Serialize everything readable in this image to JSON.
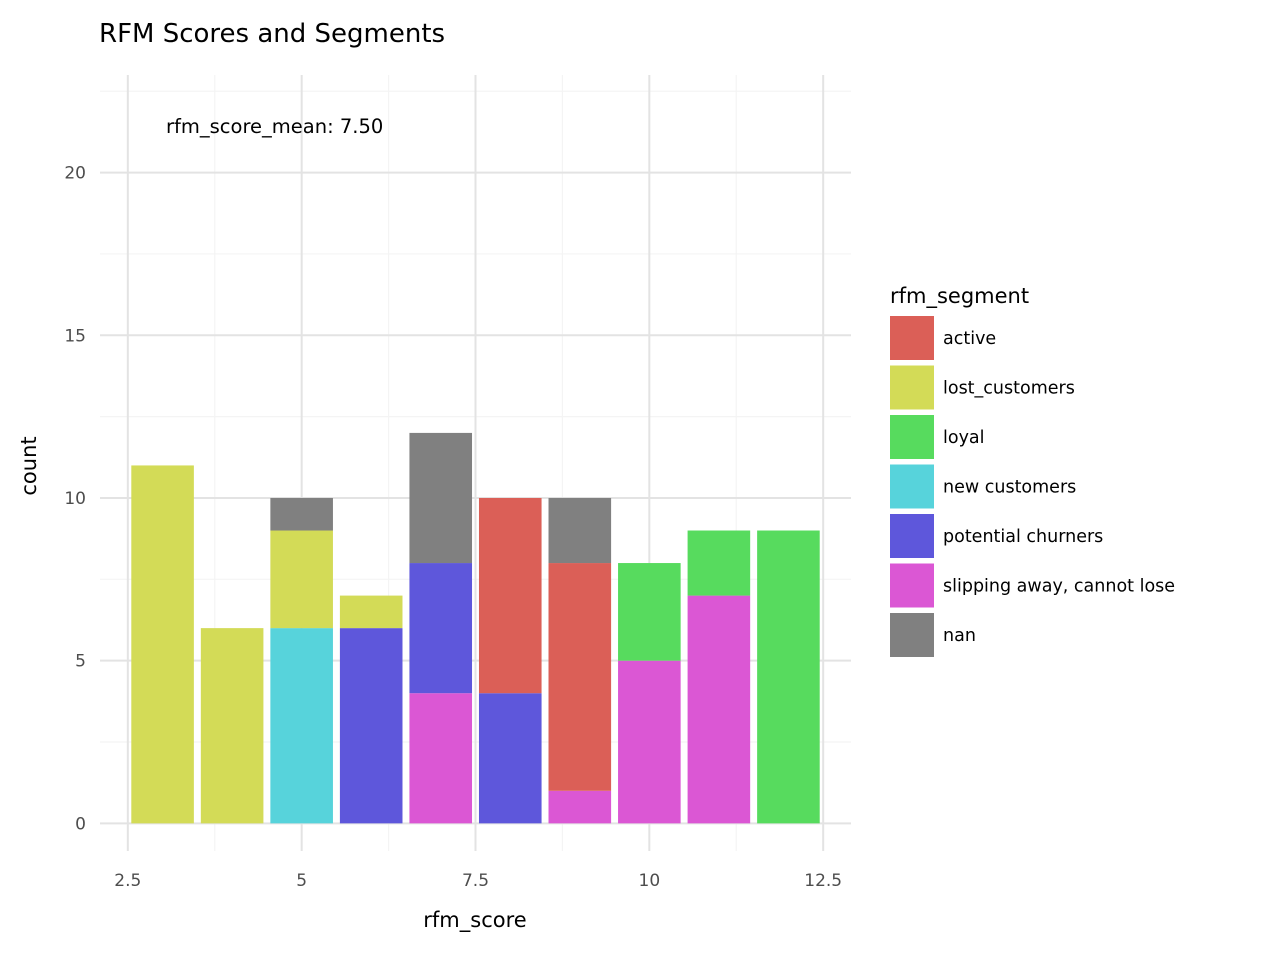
{
  "chart_data": {
    "type": "bar",
    "stacked": true,
    "title": "RFM Scores and Segments",
    "xlabel": "rfm_score",
    "ylabel": "count",
    "annotation": "rfm_score_mean: 7.50",
    "xlim": [
      2.1,
      12.9
    ],
    "ylim": [
      -0.85,
      23.0
    ],
    "x_ticks": [
      2.5,
      5,
      7.5,
      10,
      12.5
    ],
    "x_tick_labels": [
      "2.5",
      "5",
      "7.5",
      "10",
      "12.5"
    ],
    "y_ticks": [
      0,
      5,
      10,
      15,
      20
    ],
    "y_tick_labels": [
      "0",
      "5",
      "10",
      "15",
      "20"
    ],
    "grid": true,
    "legend_position": "right",
    "legend_title": "rfm_segment",
    "categories": [
      3,
      4,
      5,
      6,
      7,
      8,
      9,
      10,
      11,
      12
    ],
    "series": [
      {
        "name": "slipping away, cannot lose",
        "color": "#DB57D4",
        "values": [
          0,
          0,
          0,
          0,
          4,
          0,
          1,
          5,
          7,
          0
        ]
      },
      {
        "name": "potential churners",
        "color": "#5E57DB",
        "values": [
          0,
          0,
          0,
          6,
          4,
          4,
          0,
          0,
          0,
          0
        ]
      },
      {
        "name": "new customers",
        "color": "#57D3DB",
        "values": [
          0,
          0,
          6,
          0,
          0,
          0,
          0,
          0,
          0,
          0
        ]
      },
      {
        "name": "loyal",
        "color": "#57DB5E",
        "values": [
          0,
          0,
          0,
          0,
          0,
          0,
          0,
          3,
          2,
          9
        ]
      },
      {
        "name": "lost_customers",
        "color": "#D3DB57",
        "values": [
          11,
          6,
          3,
          1,
          0,
          0,
          0,
          0,
          0,
          0
        ]
      },
      {
        "name": "active",
        "color": "#DB5F57",
        "values": [
          0,
          0,
          0,
          0,
          0,
          6,
          7,
          0,
          0,
          0
        ]
      },
      {
        "name": "nan",
        "color": "#808080",
        "values": [
          0,
          0,
          1,
          0,
          4,
          0,
          2,
          0,
          0,
          0
        ]
      }
    ],
    "legend_order": [
      "active",
      "lost_customers",
      "loyal",
      "new customers",
      "potential churners",
      "slipping away, cannot lose",
      "nan"
    ]
  }
}
